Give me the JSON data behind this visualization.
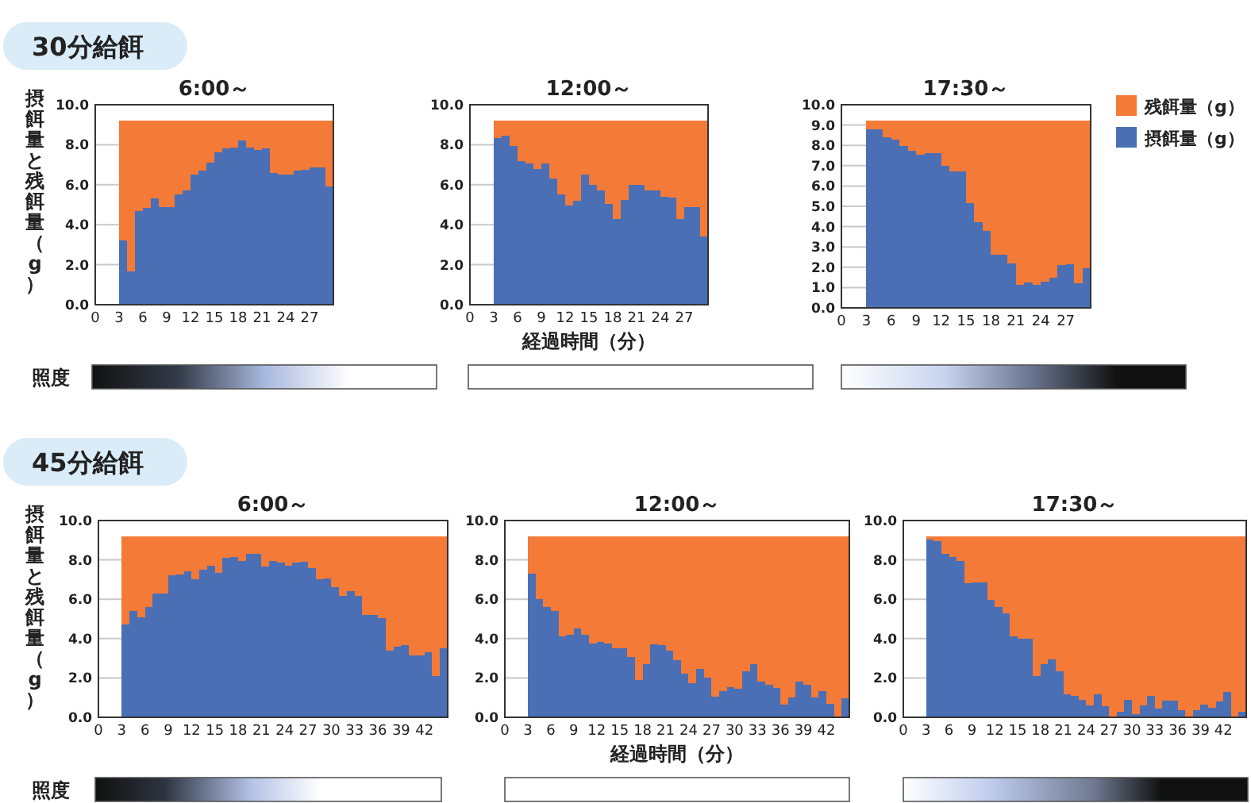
{
  "chart_data": [
    {
      "type": "bar",
      "stacked": true,
      "title": "6:00～",
      "ylabel": "摂餌量と残餌量（g）",
      "annotations": [
        "30分給餌",
        "照度"
      ],
      "grid": "y",
      "xlim": [
        0,
        30
      ],
      "xticks": [
        0,
        3,
        6,
        9,
        12,
        15,
        18,
        21,
        24,
        27
      ],
      "ylim": [
        0,
        10
      ],
      "yticks": [
        {
          "value": 0,
          "label": "0.0"
        },
        {
          "value": 2,
          "label": "2.0"
        },
        {
          "value": 4,
          "label": "4.0"
        },
        {
          "value": 6,
          "label": "6.0"
        },
        {
          "value": 8,
          "label": "8.0"
        },
        {
          "value": 10,
          "label": "10.0"
        }
      ],
      "x": [
        3.5,
        4.5,
        5.5,
        6.5,
        7.5,
        8.5,
        9.5,
        10.5,
        11.5,
        12.5,
        13.5,
        14.5,
        15.5,
        16.5,
        17.5,
        18.5,
        19.5,
        20.5,
        21.5,
        22.5,
        23.5,
        24.5,
        25.5,
        26.5,
        27.5,
        28.5,
        29.5
      ],
      "series": [
        {
          "color": "#4a6fb5",
          "values": [
            3.2,
            1.65,
            4.7,
            4.85,
            5.3,
            4.9,
            4.9,
            5.5,
            5.7,
            6.5,
            6.7,
            7.1,
            7.6,
            7.8,
            7.85,
            8.2,
            7.85,
            7.75,
            7.8,
            6.6,
            6.5,
            6.5,
            6.7,
            6.75,
            6.85,
            6.85,
            5.9
          ]
        },
        {
          "color": "#f47a38",
          "values": [
            6.0,
            7.55,
            4.5,
            4.35,
            3.9,
            4.3,
            4.3,
            3.7,
            3.5,
            2.7,
            2.5,
            2.1,
            1.6,
            1.4,
            1.35,
            1.0,
            1.35,
            1.45,
            1.4,
            2.6,
            2.7,
            2.7,
            2.5,
            2.45,
            2.35,
            2.35,
            3.3
          ]
        }
      ]
    },
    {
      "type": "bar",
      "stacked": true,
      "title": "12:00～",
      "xlabel": "経過時間（分）",
      "grid": "y",
      "xlim": [
        0,
        30
      ],
      "xticks": [
        0,
        3,
        6,
        9,
        12,
        15,
        18,
        21,
        24,
        27
      ],
      "ylim": [
        0,
        10
      ],
      "yticks": [
        {
          "value": 0,
          "label": "0.0"
        },
        {
          "value": 2,
          "label": "2.0"
        },
        {
          "value": 4,
          "label": "4.0"
        },
        {
          "value": 6,
          "label": "6.0"
        },
        {
          "value": 8,
          "label": "8.0"
        },
        {
          "value": 10,
          "label": "10.0"
        }
      ],
      "x": [
        3.5,
        4.5,
        5.5,
        6.5,
        7.5,
        8.5,
        9.5,
        10.5,
        11.5,
        12.5,
        13.5,
        14.5,
        15.5,
        16.5,
        17.5,
        18.5,
        19.5,
        20.5,
        21.5,
        22.5,
        23.5,
        24.5,
        25.5,
        26.5,
        27.5,
        28.5,
        29.5
      ],
      "series": [
        {
          "color": "#4a6fb5",
          "values": [
            8.35,
            8.45,
            7.95,
            7.2,
            7.05,
            6.8,
            7.05,
            6.3,
            5.5,
            4.95,
            5.2,
            6.5,
            6.0,
            5.7,
            5.05,
            4.3,
            5.25,
            6.0,
            6.0,
            5.7,
            5.7,
            5.4,
            5.35,
            4.3,
            4.9,
            4.9,
            3.4
          ]
        },
        {
          "color": "#f47a38",
          "values": [
            0.85,
            0.75,
            1.25,
            2.0,
            2.15,
            2.4,
            2.15,
            2.9,
            3.7,
            4.25,
            4.0,
            2.7,
            3.2,
            3.5,
            4.15,
            4.9,
            3.95,
            3.2,
            3.2,
            3.5,
            3.5,
            3.8,
            3.85,
            4.9,
            4.3,
            4.3,
            5.8
          ]
        }
      ]
    },
    {
      "type": "bar",
      "stacked": true,
      "title": "17:30～",
      "legend": "right",
      "grid": "y",
      "xlim": [
        0,
        30
      ],
      "xticks": [
        0,
        3,
        6,
        9,
        12,
        15,
        18,
        21,
        24,
        27
      ],
      "ylim": [
        0,
        10
      ],
      "yticks": [
        {
          "value": 0,
          "label": "0.0"
        },
        {
          "value": 1,
          "label": "1.0"
        },
        {
          "value": 2,
          "label": "2.0"
        },
        {
          "value": 3,
          "label": "3.0"
        },
        {
          "value": 4,
          "label": "4.0"
        },
        {
          "value": 5,
          "label": "5.0"
        },
        {
          "value": 6,
          "label": "6.0"
        },
        {
          "value": 7,
          "label": "7.0"
        },
        {
          "value": 8,
          "label": "8.0"
        },
        {
          "value": 9,
          "label": "9.0"
        },
        {
          "value": 10,
          "label": "10.0"
        }
      ],
      "x": [
        3.5,
        4.5,
        5.5,
        6.5,
        7.5,
        8.5,
        9.5,
        10.5,
        11.5,
        12.5,
        13.5,
        14.5,
        15.5,
        16.5,
        17.5,
        18.5,
        19.5,
        20.5,
        21.5,
        22.5,
        23.5,
        24.5,
        25.5,
        26.5,
        27.5,
        28.5,
        29.5
      ],
      "series": [
        {
          "name": "摂餌量（g）",
          "color": "#4a6fb5",
          "values": [
            8.8,
            8.8,
            8.4,
            8.3,
            7.95,
            7.75,
            7.55,
            7.6,
            7.6,
            7.0,
            6.7,
            6.7,
            5.15,
            4.2,
            3.8,
            2.6,
            2.6,
            2.2,
            1.15,
            1.25,
            1.15,
            1.3,
            1.5,
            2.1,
            2.15,
            1.2,
            1.95
          ]
        },
        {
          "name": "残餌量（g）",
          "color": "#f47a38",
          "values": [
            0.4,
            0.4,
            0.8,
            0.9,
            1.25,
            1.45,
            1.65,
            1.6,
            1.6,
            2.2,
            2.5,
            2.5,
            4.05,
            5.0,
            5.4,
            6.6,
            6.6,
            7.0,
            8.05,
            7.95,
            8.05,
            7.9,
            7.7,
            7.1,
            7.05,
            8.0,
            7.25
          ]
        }
      ]
    },
    {
      "type": "bar",
      "stacked": true,
      "title": "6:00～",
      "ylabel": "摂餌量と残餌量（g）",
      "annotations": [
        "45分給餌",
        "照度"
      ],
      "grid": "y",
      "xlim": [
        0,
        45
      ],
      "xticks": [
        0,
        3,
        6,
        9,
        12,
        15,
        18,
        21,
        24,
        27,
        30,
        33,
        36,
        39,
        42
      ],
      "ylim": [
        0,
        10
      ],
      "yticks": [
        {
          "value": 0,
          "label": "0.0"
        },
        {
          "value": 2,
          "label": "2.0"
        },
        {
          "value": 4,
          "label": "4.0"
        },
        {
          "value": 6,
          "label": "6.0"
        },
        {
          "value": 8,
          "label": "8.0"
        },
        {
          "value": 10,
          "label": "10.0"
        }
      ],
      "x": [
        3.5,
        4.5,
        5.5,
        6.5,
        7.5,
        8.5,
        9.5,
        10.5,
        11.5,
        12.5,
        13.5,
        14.5,
        15.5,
        16.5,
        17.5,
        18.5,
        19.5,
        20.5,
        21.5,
        22.5,
        23.5,
        24.5,
        25.5,
        26.5,
        27.5,
        28.5,
        29.5,
        30.5,
        31.5,
        32.5,
        33.5,
        34.5,
        35.5,
        36.5,
        37.5,
        38.5,
        39.5,
        40.5,
        41.5,
        42.5,
        43.5,
        44.5
      ],
      "series": [
        {
          "color": "#4a6fb5",
          "values": [
            4.7,
            5.4,
            5.1,
            5.6,
            6.3,
            6.3,
            7.2,
            7.25,
            7.4,
            7.0,
            7.5,
            7.7,
            7.35,
            8.1,
            8.15,
            7.95,
            8.3,
            8.3,
            7.65,
            7.95,
            7.85,
            7.7,
            7.85,
            7.9,
            7.6,
            7.0,
            7.05,
            6.6,
            6.15,
            6.4,
            6.15,
            5.2,
            5.2,
            5.05,
            3.4,
            3.6,
            3.65,
            3.15,
            3.15,
            3.3,
            2.1,
            3.5
          ]
        },
        {
          "color": "#f47a38",
          "values": [
            4.5,
            3.8,
            4.1,
            3.6,
            2.9,
            2.9,
            2.0,
            1.95,
            1.8,
            2.2,
            1.7,
            1.5,
            1.85,
            1.1,
            1.05,
            1.25,
            0.9,
            0.9,
            1.55,
            1.25,
            1.35,
            1.5,
            1.35,
            1.3,
            1.6,
            2.2,
            2.15,
            2.6,
            3.05,
            2.8,
            3.05,
            4.0,
            4.0,
            4.15,
            5.8,
            5.6,
            5.55,
            6.05,
            6.05,
            5.9,
            7.1,
            5.7
          ]
        }
      ]
    },
    {
      "type": "bar",
      "stacked": true,
      "title": "12:00～",
      "xlabel": "経過時間（分）",
      "grid": "y",
      "xlim": [
        0,
        45
      ],
      "xticks": [
        0,
        3,
        6,
        9,
        12,
        15,
        18,
        21,
        24,
        27,
        30,
        33,
        36,
        39,
        42
      ],
      "ylim": [
        0,
        10
      ],
      "yticks": [
        {
          "value": 0,
          "label": "0.0"
        },
        {
          "value": 2,
          "label": "2.0"
        },
        {
          "value": 4,
          "label": "4.0"
        },
        {
          "value": 6,
          "label": "6.0"
        },
        {
          "value": 8,
          "label": "8.0"
        },
        {
          "value": 10,
          "label": "10.0"
        }
      ],
      "x": [
        3.5,
        4.5,
        5.5,
        6.5,
        7.5,
        8.5,
        9.5,
        10.5,
        11.5,
        12.5,
        13.5,
        14.5,
        15.5,
        16.5,
        17.5,
        18.5,
        19.5,
        20.5,
        21.5,
        22.5,
        23.5,
        24.5,
        25.5,
        26.5,
        27.5,
        28.5,
        29.5,
        30.5,
        31.5,
        32.5,
        33.5,
        34.5,
        35.5,
        36.5,
        37.5,
        38.5,
        39.5,
        40.5,
        41.5,
        42.5,
        43.5,
        44.5
      ],
      "series": [
        {
          "color": "#4a6fb5",
          "values": [
            7.3,
            6.0,
            5.6,
            5.4,
            4.1,
            4.2,
            4.5,
            4.2,
            3.75,
            3.85,
            3.75,
            3.5,
            3.5,
            3.05,
            1.9,
            2.7,
            3.7,
            3.65,
            3.4,
            2.9,
            2.2,
            1.75,
            2.45,
            2.0,
            1.05,
            1.35,
            1.55,
            1.45,
            2.35,
            2.7,
            1.8,
            1.65,
            1.5,
            0.65,
            1.0,
            1.8,
            1.65,
            1.0,
            1.35,
            0.7,
            0.0,
            0.95
          ]
        },
        {
          "color": "#f47a38",
          "values": [
            1.9,
            3.2,
            3.6,
            3.8,
            5.1,
            5.0,
            4.7,
            5.0,
            5.45,
            5.35,
            5.45,
            5.7,
            5.7,
            6.15,
            7.3,
            6.5,
            5.5,
            5.55,
            5.8,
            6.3,
            7.0,
            7.45,
            6.75,
            7.2,
            8.15,
            7.85,
            7.65,
            7.75,
            6.85,
            6.5,
            7.4,
            7.55,
            7.7,
            8.55,
            8.2,
            7.4,
            7.55,
            8.2,
            7.85,
            8.5,
            9.2,
            8.25
          ]
        }
      ]
    },
    {
      "type": "bar",
      "stacked": true,
      "title": "17:30～",
      "grid": "y",
      "xlim": [
        0,
        45
      ],
      "xticks": [
        0,
        3,
        6,
        9,
        12,
        15,
        18,
        21,
        24,
        27,
        30,
        33,
        36,
        39,
        42
      ],
      "ylim": [
        0,
        10
      ],
      "yticks": [
        {
          "value": 0,
          "label": "0.0"
        },
        {
          "value": 2,
          "label": "2.0"
        },
        {
          "value": 4,
          "label": "4.0"
        },
        {
          "value": 6,
          "label": "6.0"
        },
        {
          "value": 8,
          "label": "8.0"
        },
        {
          "value": 10,
          "label": "10.0"
        }
      ],
      "x": [
        3.5,
        4.5,
        5.5,
        6.5,
        7.5,
        8.5,
        9.5,
        10.5,
        11.5,
        12.5,
        13.5,
        14.5,
        15.5,
        16.5,
        17.5,
        18.5,
        19.5,
        20.5,
        21.5,
        22.5,
        23.5,
        24.5,
        25.5,
        26.5,
        27.5,
        28.5,
        29.5,
        30.5,
        31.5,
        32.5,
        33.5,
        34.5,
        35.5,
        36.5,
        37.5,
        38.5,
        39.5,
        40.5,
        41.5,
        42.5,
        43.5,
        44.5
      ],
      "series": [
        {
          "color": "#4a6fb5",
          "values": [
            9.05,
            8.95,
            8.3,
            8.15,
            7.95,
            6.8,
            6.85,
            6.85,
            5.95,
            5.6,
            5.3,
            4.1,
            4.0,
            4.0,
            2.1,
            2.7,
            2.95,
            2.35,
            1.15,
            1.1,
            0.9,
            0.6,
            1.15,
            0.55,
            0.0,
            0.3,
            0.9,
            0.15,
            0.6,
            1.1,
            0.45,
            0.85,
            0.85,
            0.35,
            0.0,
            0.35,
            0.65,
            0.5,
            0.8,
            1.3,
            0.0,
            0.3
          ]
        },
        {
          "color": "#f47a38",
          "values": [
            0.15,
            0.25,
            0.9,
            1.05,
            1.25,
            2.4,
            2.35,
            2.35,
            3.25,
            3.6,
            3.9,
            5.1,
            5.2,
            5.2,
            7.1,
            6.5,
            6.25,
            6.85,
            8.05,
            8.1,
            8.3,
            8.6,
            8.05,
            8.65,
            9.2,
            8.9,
            8.3,
            9.05,
            8.6,
            8.1,
            8.75,
            8.35,
            8.35,
            8.85,
            9.2,
            8.85,
            8.55,
            8.7,
            8.4,
            7.9,
            9.2,
            8.9
          ]
        }
      ]
    }
  ]
}
